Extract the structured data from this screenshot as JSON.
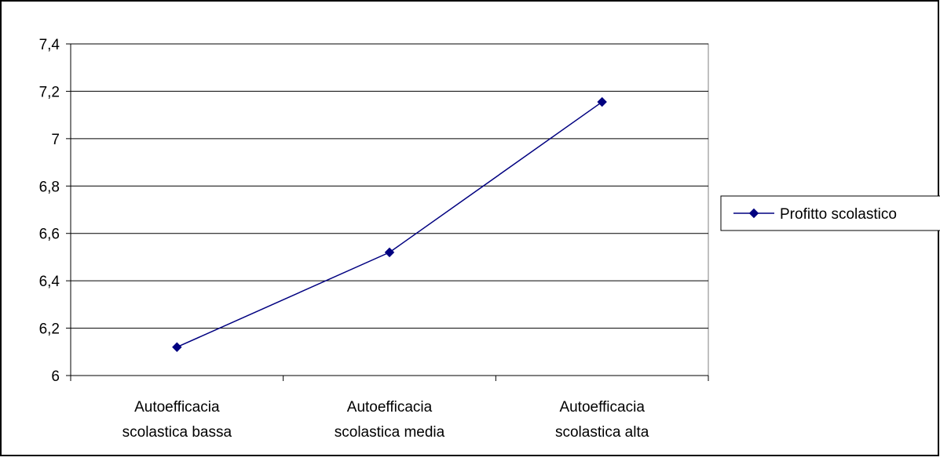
{
  "chart_data": {
    "type": "line",
    "categories": [
      [
        "Autoefficacia",
        "scolastica bassa"
      ],
      [
        "Autoefficacia",
        "scolastica media"
      ],
      [
        "Autoefficacia",
        "scolastica alta"
      ]
    ],
    "series": [
      {
        "name": "Profitto scolastico",
        "values": [
          6.12,
          6.52,
          7.155
        ],
        "color": "#000080",
        "marker": "diamond"
      }
    ],
    "ylim": [
      6,
      7.4
    ],
    "yticks": [
      6,
      6.2,
      6.4,
      6.6,
      6.8,
      7,
      7.2,
      7.4
    ],
    "ytick_labels": [
      "6",
      "6,2",
      "6,4",
      "6,6",
      "6,8",
      "7",
      "7,2",
      "7,4"
    ],
    "grid": true,
    "legend_position": "right",
    "title": "",
    "xlabel": "",
    "ylabel": ""
  }
}
